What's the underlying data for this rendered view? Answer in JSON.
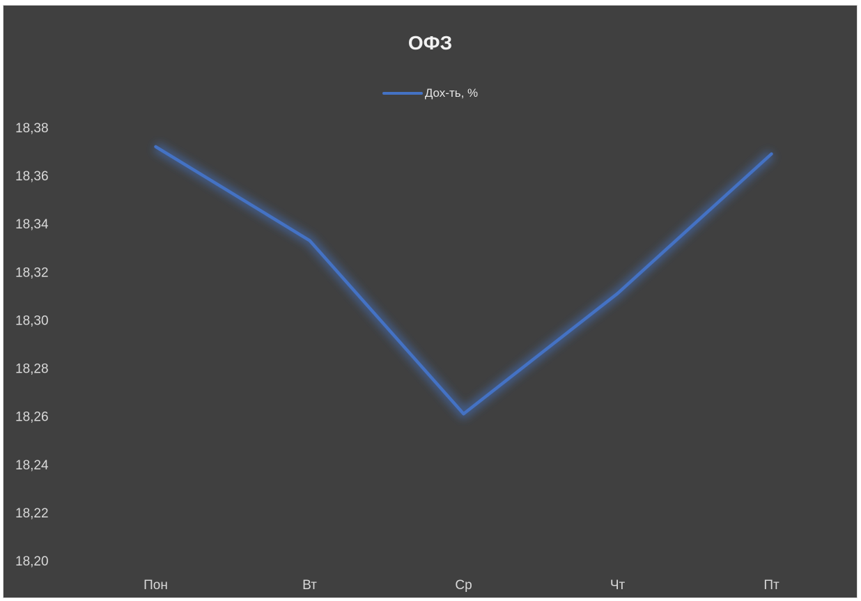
{
  "chart_data": {
    "type": "line",
    "title": "ОФЗ",
    "categories": [
      "Пон",
      "Вт",
      "Ср",
      "Чт",
      "Пт"
    ],
    "series": [
      {
        "name": "Дох-ть, %",
        "values": [
          18.372,
          18.333,
          18.261,
          18.311,
          18.369
        ],
        "color": "#4472c4"
      }
    ],
    "yticks": [
      "18,20",
      "18,22",
      "18,24",
      "18,26",
      "18,28",
      "18,30",
      "18,32",
      "18,34",
      "18,36",
      "18,38"
    ],
    "ylim": [
      18.2,
      18.38
    ],
    "xlabel": "",
    "ylabel": "",
    "grid": false,
    "legend": "top-center",
    "background_color": "#404040"
  }
}
